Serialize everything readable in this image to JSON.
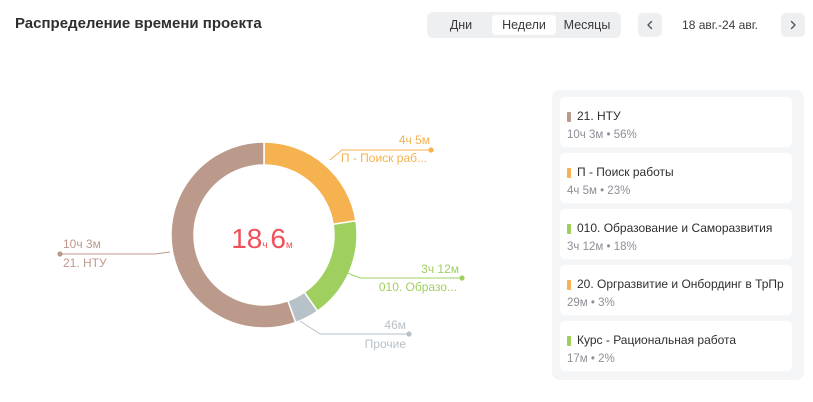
{
  "header": {
    "title": "Распределение времени проекта",
    "periods": [
      "Дни",
      "Недели",
      "Месяцы"
    ],
    "active_period": 1,
    "date_range": "18 авг.-24 авг."
  },
  "chart_data": {
    "type": "donut",
    "center_total": {
      "hours": "18",
      "hours_unit": "ч",
      "minutes": "6",
      "minutes_unit": "м"
    },
    "segments": [
      {
        "name": "П - Поиск раб...",
        "label_value": "4ч 5м",
        "value_minutes": 245,
        "color": "#f5b24f"
      },
      {
        "name": "010. Образо...",
        "label_value": "3ч 12м",
        "value_minutes": 192,
        "color": "#9fd05f"
      },
      {
        "name": "Прочие",
        "label_value": "46м",
        "value_minutes": 46,
        "color": "#b7c1c8"
      },
      {
        "name": "21. НТУ",
        "label_value": "10ч 3м",
        "value_minutes": 603,
        "color": "#bc9a8b"
      }
    ]
  },
  "legend": {
    "items": [
      {
        "name": "21. НТУ",
        "detail": "10ч 3м • 56%",
        "color": "#bc9a8b"
      },
      {
        "name": "П - Поиск работы",
        "detail": "4ч 5м • 23%",
        "color": "#f5b24f"
      },
      {
        "name": "010. Образование и Саморазвития",
        "detail": "3ч 12м • 18%",
        "color": "#9fd05f"
      },
      {
        "name": "20. Оргразвитие и Онбординг в ТрПр",
        "detail": "29м • 3%",
        "color": "#f5b24f"
      },
      {
        "name": "Курс - Рациональная работа",
        "detail": "17м • 2%",
        "color": "#9fd05f"
      }
    ]
  },
  "icons": {
    "prev": "chevron-left-icon",
    "next": "chevron-right-icon"
  }
}
